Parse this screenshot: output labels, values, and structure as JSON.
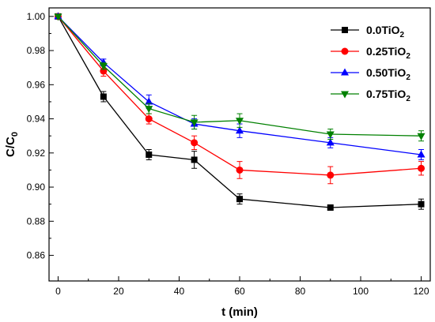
{
  "chart_data": {
    "type": "line",
    "xlabel": "t (min)",
    "ylabel_main": "C/C",
    "ylabel_sub": "0",
    "xlim": [
      -3,
      123
    ],
    "ylim": [
      0.845,
      1.005
    ],
    "x_ticks": [
      0,
      20,
      40,
      60,
      80,
      100,
      120
    ],
    "y_ticks": [
      0.86,
      0.88,
      0.9,
      0.92,
      0.94,
      0.96,
      0.98,
      1.0
    ],
    "x_tick_labels": [
      "0",
      "20",
      "40",
      "60",
      "80",
      "100",
      "120"
    ],
    "y_tick_labels": [
      "0.86",
      "0.88",
      "0.90",
      "0.92",
      "0.94",
      "0.96",
      "0.98",
      "1.00"
    ],
    "legend_position": "top-right",
    "grid": false,
    "x": [
      0,
      15,
      30,
      45,
      60,
      90,
      120
    ],
    "series": [
      {
        "label_main": "0.0TiO",
        "label_sub": "2",
        "color": "#000000",
        "marker": "square",
        "values": [
          1.0,
          0.953,
          0.919,
          0.916,
          0.893,
          0.888,
          0.89
        ],
        "errors": [
          0.0,
          0.003,
          0.003,
          0.005,
          0.003,
          0.001,
          0.003
        ]
      },
      {
        "label_main": "0.25TiO",
        "label_sub": "2",
        "color": "#ff0000",
        "marker": "circle",
        "values": [
          1.0,
          0.968,
          0.94,
          0.926,
          0.91,
          0.907,
          0.911
        ],
        "errors": [
          0.0,
          0.003,
          0.003,
          0.004,
          0.005,
          0.005,
          0.004
        ]
      },
      {
        "label_main": "0.50TiO",
        "label_sub": "2",
        "color": "#0000ff",
        "marker": "triangle-up",
        "values": [
          1.0,
          0.973,
          0.95,
          0.937,
          0.933,
          0.926,
          0.919
        ],
        "errors": [
          0.0,
          0.002,
          0.004,
          0.003,
          0.004,
          0.003,
          0.003
        ]
      },
      {
        "label_main": "0.75TiO",
        "label_sub": "2",
        "color": "#008000",
        "marker": "triangle-down",
        "values": [
          1.0,
          0.971,
          0.946,
          0.938,
          0.939,
          0.931,
          0.93
        ],
        "errors": [
          0.0,
          0.002,
          0.003,
          0.004,
          0.004,
          0.003,
          0.003
        ]
      }
    ]
  }
}
